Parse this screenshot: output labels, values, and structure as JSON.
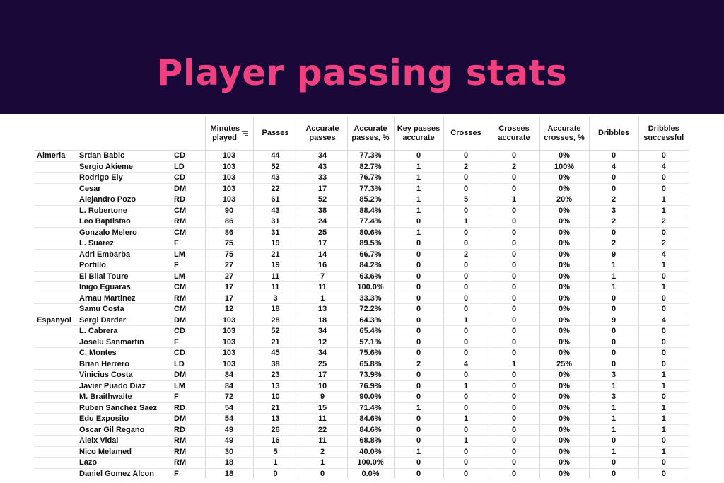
{
  "title": "Player passing stats",
  "columns": {
    "minutes": "Minutes played",
    "passes": "Passes",
    "acc_passes": "Accurate passes",
    "acc_passes_pct": "Accurate passes, %",
    "key_passes": "Key passes accurate",
    "crosses": "Crosses",
    "crosses_acc": "Crosses accurate",
    "acc_crosses_pct": "Accurate crosses, %",
    "dribbles": "Dribbles",
    "dribbles_succ": "Dribbles successful"
  },
  "rows": [
    {
      "team": "Almeria",
      "player": "Srdan Babic",
      "pos": "CD",
      "minutes": "103",
      "passes": "44",
      "acc": "34",
      "acc_pct": "77.3%",
      "key": "0",
      "crosses": "0",
      "cross_acc": "0",
      "cross_pct": "0%",
      "dribbles": "0",
      "dribbles_succ": "0"
    },
    {
      "team": "",
      "player": "Sergio Akieme",
      "pos": "LD",
      "minutes": "103",
      "passes": "52",
      "acc": "43",
      "acc_pct": "82.7%",
      "key": "1",
      "crosses": "2",
      "cross_acc": "2",
      "cross_pct": "100%",
      "dribbles": "4",
      "dribbles_succ": "4"
    },
    {
      "team": "",
      "player": "Rodrigo Ely",
      "pos": "CD",
      "minutes": "103",
      "passes": "43",
      "acc": "33",
      "acc_pct": "76.7%",
      "key": "1",
      "crosses": "0",
      "cross_acc": "0",
      "cross_pct": "0%",
      "dribbles": "0",
      "dribbles_succ": "0"
    },
    {
      "team": "",
      "player": "Cesar",
      "pos": "DM",
      "minutes": "103",
      "passes": "22",
      "acc": "17",
      "acc_pct": "77.3%",
      "key": "1",
      "crosses": "0",
      "cross_acc": "0",
      "cross_pct": "0%",
      "dribbles": "0",
      "dribbles_succ": "0"
    },
    {
      "team": "",
      "player": "Alejandro Pozo",
      "pos": "RD",
      "minutes": "103",
      "passes": "61",
      "acc": "52",
      "acc_pct": "85.2%",
      "key": "1",
      "crosses": "5",
      "cross_acc": "1",
      "cross_pct": "20%",
      "dribbles": "2",
      "dribbles_succ": "1"
    },
    {
      "team": "",
      "player": "L. Robertone",
      "pos": "CM",
      "minutes": "90",
      "passes": "43",
      "acc": "38",
      "acc_pct": "88.4%",
      "key": "1",
      "crosses": "0",
      "cross_acc": "0",
      "cross_pct": "0%",
      "dribbles": "3",
      "dribbles_succ": "1"
    },
    {
      "team": "",
      "player": "Leo Baptistao",
      "pos": "RM",
      "minutes": "86",
      "passes": "31",
      "acc": "24",
      "acc_pct": "77.4%",
      "key": "0",
      "crosses": "1",
      "cross_acc": "0",
      "cross_pct": "0%",
      "dribbles": "2",
      "dribbles_succ": "2"
    },
    {
      "team": "",
      "player": "Gonzalo Melero",
      "pos": "CM",
      "minutes": "86",
      "passes": "31",
      "acc": "25",
      "acc_pct": "80.6%",
      "key": "1",
      "crosses": "0",
      "cross_acc": "0",
      "cross_pct": "0%",
      "dribbles": "0",
      "dribbles_succ": "0"
    },
    {
      "team": "",
      "player": "L. Suárez",
      "pos": "F",
      "minutes": "75",
      "passes": "19",
      "acc": "17",
      "acc_pct": "89.5%",
      "key": "0",
      "crosses": "0",
      "cross_acc": "0",
      "cross_pct": "0%",
      "dribbles": "2",
      "dribbles_succ": "2"
    },
    {
      "team": "",
      "player": "Adri Embarba",
      "pos": "LM",
      "minutes": "75",
      "passes": "21",
      "acc": "14",
      "acc_pct": "66.7%",
      "key": "0",
      "crosses": "2",
      "cross_acc": "0",
      "cross_pct": "0%",
      "dribbles": "9",
      "dribbles_succ": "4"
    },
    {
      "team": "",
      "player": "Portillo",
      "pos": "F",
      "minutes": "27",
      "passes": "19",
      "acc": "16",
      "acc_pct": "84.2%",
      "key": "0",
      "crosses": "0",
      "cross_acc": "0",
      "cross_pct": "0%",
      "dribbles": "1",
      "dribbles_succ": "1"
    },
    {
      "team": "",
      "player": "El Bilal Toure",
      "pos": "LM",
      "minutes": "27",
      "passes": "11",
      "acc": "7",
      "acc_pct": "63.6%",
      "key": "0",
      "crosses": "0",
      "cross_acc": "0",
      "cross_pct": "0%",
      "dribbles": "1",
      "dribbles_succ": "0"
    },
    {
      "team": "",
      "player": "Inigo Eguaras",
      "pos": "CM",
      "minutes": "17",
      "passes": "11",
      "acc": "11",
      "acc_pct": "100.0%",
      "key": "0",
      "crosses": "0",
      "cross_acc": "0",
      "cross_pct": "0%",
      "dribbles": "1",
      "dribbles_succ": "1"
    },
    {
      "team": "",
      "player": "Arnau Martinez",
      "pos": "RM",
      "minutes": "17",
      "passes": "3",
      "acc": "1",
      "acc_pct": "33.3%",
      "key": "0",
      "crosses": "0",
      "cross_acc": "0",
      "cross_pct": "0%",
      "dribbles": "0",
      "dribbles_succ": "0"
    },
    {
      "team": "",
      "player": "Samu Costa",
      "pos": "CM",
      "minutes": "12",
      "passes": "18",
      "acc": "13",
      "acc_pct": "72.2%",
      "key": "0",
      "crosses": "0",
      "cross_acc": "0",
      "cross_pct": "0%",
      "dribbles": "0",
      "dribbles_succ": "0"
    },
    {
      "team": "Espanyol",
      "player": "Sergi Darder",
      "pos": "DM",
      "minutes": "103",
      "passes": "28",
      "acc": "18",
      "acc_pct": "64.3%",
      "key": "0",
      "crosses": "1",
      "cross_acc": "0",
      "cross_pct": "0%",
      "dribbles": "9",
      "dribbles_succ": "4"
    },
    {
      "team": "",
      "player": "L. Cabrera",
      "pos": "CD",
      "minutes": "103",
      "passes": "52",
      "acc": "34",
      "acc_pct": "65.4%",
      "key": "0",
      "crosses": "0",
      "cross_acc": "0",
      "cross_pct": "0%",
      "dribbles": "0",
      "dribbles_succ": "0"
    },
    {
      "team": "",
      "player": "Joselu Sanmartin",
      "pos": "F",
      "minutes": "103",
      "passes": "21",
      "acc": "12",
      "acc_pct": "57.1%",
      "key": "0",
      "crosses": "0",
      "cross_acc": "0",
      "cross_pct": "0%",
      "dribbles": "0",
      "dribbles_succ": "0"
    },
    {
      "team": "",
      "player": "C. Montes",
      "pos": "CD",
      "minutes": "103",
      "passes": "45",
      "acc": "34",
      "acc_pct": "75.6%",
      "key": "0",
      "crosses": "0",
      "cross_acc": "0",
      "cross_pct": "0%",
      "dribbles": "0",
      "dribbles_succ": "0"
    },
    {
      "team": "",
      "player": "Brian Herrero",
      "pos": "LD",
      "minutes": "103",
      "passes": "38",
      "acc": "25",
      "acc_pct": "65.8%",
      "key": "2",
      "crosses": "4",
      "cross_acc": "1",
      "cross_pct": "25%",
      "dribbles": "0",
      "dribbles_succ": "0"
    },
    {
      "team": "",
      "player": "Vinicius Costa",
      "pos": "DM",
      "minutes": "84",
      "passes": "23",
      "acc": "17",
      "acc_pct": "73.9%",
      "key": "0",
      "crosses": "0",
      "cross_acc": "0",
      "cross_pct": "0%",
      "dribbles": "3",
      "dribbles_succ": "1"
    },
    {
      "team": "",
      "player": "Javier Puado Diaz",
      "pos": "LM",
      "minutes": "84",
      "passes": "13",
      "acc": "10",
      "acc_pct": "76.9%",
      "key": "0",
      "crosses": "1",
      "cross_acc": "0",
      "cross_pct": "0%",
      "dribbles": "1",
      "dribbles_succ": "1"
    },
    {
      "team": "",
      "player": "M. Braithwaite",
      "pos": "F",
      "minutes": "72",
      "passes": "10",
      "acc": "9",
      "acc_pct": "90.0%",
      "key": "0",
      "crosses": "0",
      "cross_acc": "0",
      "cross_pct": "0%",
      "dribbles": "3",
      "dribbles_succ": "0"
    },
    {
      "team": "",
      "player": "Ruben Sanchez Saez",
      "pos": "RD",
      "minutes": "54",
      "passes": "21",
      "acc": "15",
      "acc_pct": "71.4%",
      "key": "1",
      "crosses": "0",
      "cross_acc": "0",
      "cross_pct": "0%",
      "dribbles": "1",
      "dribbles_succ": "1"
    },
    {
      "team": "",
      "player": "Edu Exposito",
      "pos": "DM",
      "minutes": "54",
      "passes": "13",
      "acc": "11",
      "acc_pct": "84.6%",
      "key": "0",
      "crosses": "1",
      "cross_acc": "0",
      "cross_pct": "0%",
      "dribbles": "1",
      "dribbles_succ": "1"
    },
    {
      "team": "",
      "player": "Oscar Gil Regano",
      "pos": "RD",
      "minutes": "49",
      "passes": "26",
      "acc": "22",
      "acc_pct": "84.6%",
      "key": "0",
      "crosses": "0",
      "cross_acc": "0",
      "cross_pct": "0%",
      "dribbles": "1",
      "dribbles_succ": "1"
    },
    {
      "team": "",
      "player": "Aleix Vidal",
      "pos": "RM",
      "minutes": "49",
      "passes": "16",
      "acc": "11",
      "acc_pct": "68.8%",
      "key": "0",
      "crosses": "1",
      "cross_acc": "0",
      "cross_pct": "0%",
      "dribbles": "0",
      "dribbles_succ": "0"
    },
    {
      "team": "",
      "player": "Nico Melamed",
      "pos": "RM",
      "minutes": "30",
      "passes": "5",
      "acc": "2",
      "acc_pct": "40.0%",
      "key": "1",
      "crosses": "0",
      "cross_acc": "0",
      "cross_pct": "0%",
      "dribbles": "1",
      "dribbles_succ": "1"
    },
    {
      "team": "",
      "player": "Lazo",
      "pos": "RM",
      "minutes": "18",
      "passes": "1",
      "acc": "1",
      "acc_pct": "100.0%",
      "key": "0",
      "crosses": "0",
      "cross_acc": "0",
      "cross_pct": "0%",
      "dribbles": "0",
      "dribbles_succ": "0"
    },
    {
      "team": "",
      "player": "Daniel Gomez Alcon",
      "pos": "F",
      "minutes": "18",
      "passes": "0",
      "acc": "0",
      "acc_pct": "0.0%",
      "key": "0",
      "crosses": "0",
      "cross_acc": "0",
      "cross_pct": "0%",
      "dribbles": "0",
      "dribbles_succ": "0"
    }
  ]
}
